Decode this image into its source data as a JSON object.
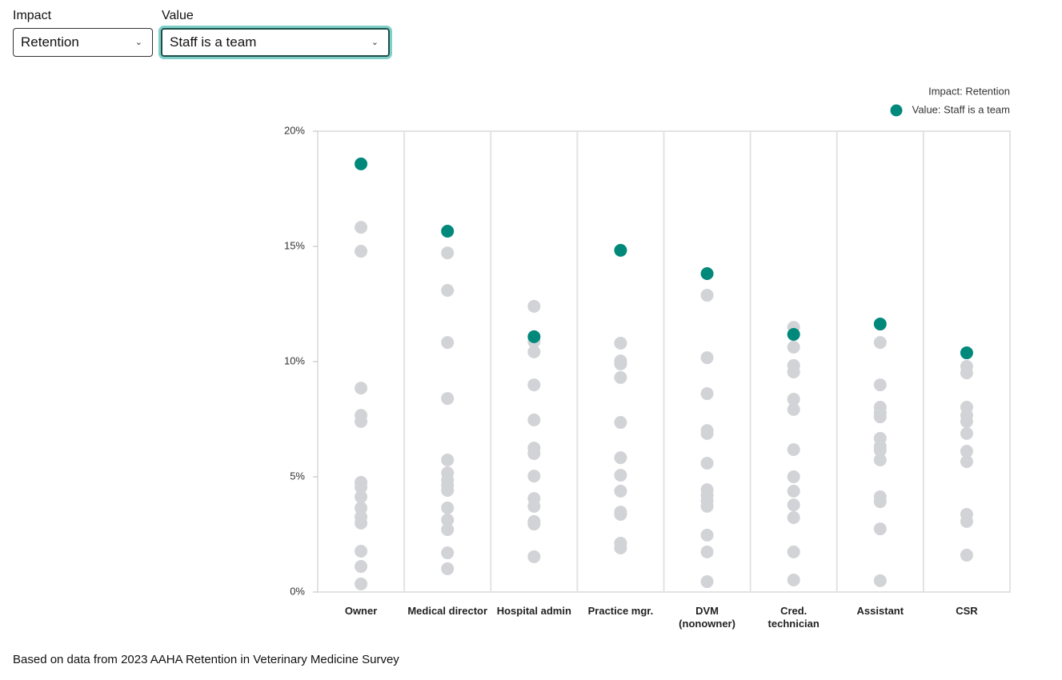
{
  "controls": [
    {
      "label": "Impact",
      "selected": "Retention"
    },
    {
      "label": "Value",
      "selected": "Staff is a team"
    }
  ],
  "chart_data": {
    "type": "strip",
    "legend_title": "Impact: Retention",
    "categories": [
      "Owner",
      "Medical director",
      "Hospital admin",
      "Practice mgr.",
      "DVM (nonowner)",
      "Cred. technician",
      "Assistant",
      "CSR"
    ],
    "series": [
      {
        "name": "Value: Staff is a team",
        "color": "#00897b",
        "values": [
          18.58,
          15.66,
          11.08,
          14.83,
          13.82,
          11.18,
          11.63,
          10.38
        ]
      }
    ],
    "other_values_color": "#d1d3d6",
    "other_values": [
      [
        15.83,
        14.79,
        8.85,
        7.67,
        7.4,
        4.76,
        4.55,
        4.13,
        3.65,
        3.26,
        2.99,
        1.77,
        1.11,
        0.35
      ],
      [
        14.72,
        13.09,
        10.83,
        8.4,
        5.73,
        5.17,
        4.86,
        4.62,
        4.41,
        3.65,
        3.13,
        2.71,
        1.7,
        1.01
      ],
      [
        12.4,
        10.87,
        10.42,
        8.99,
        7.47,
        6.25,
        6.01,
        5.03,
        4.06,
        3.72,
        3.06,
        2.95,
        1.53
      ],
      [
        10.8,
        10.03,
        9.9,
        9.31,
        7.36,
        5.83,
        5.07,
        4.38,
        3.47,
        3.37,
        2.12,
        1.91
      ],
      [
        12.88,
        10.17,
        8.61,
        7.01,
        6.88,
        5.59,
        4.44,
        4.2,
        3.96,
        3.72,
        2.47,
        1.74,
        0.45
      ],
      [
        11.49,
        10.63,
        9.83,
        9.55,
        8.37,
        7.92,
        6.18,
        5.0,
        4.38,
        3.78,
        3.23,
        1.74,
        0.52
      ],
      [
        10.83,
        8.99,
        8.02,
        7.78,
        7.6,
        6.67,
        6.32,
        6.15,
        5.73,
        4.13,
        3.92,
        2.74,
        0.49
      ],
      [
        9.79,
        9.51,
        8.02,
        7.67,
        7.4,
        6.88,
        6.11,
        5.66,
        3.37,
        3.06,
        1.6
      ]
    ],
    "ylim": [
      0,
      20
    ],
    "yticks": [
      {
        "value": 0,
        "label": "0%"
      },
      {
        "value": 5,
        "label": "5%"
      },
      {
        "value": 10,
        "label": "10%"
      },
      {
        "value": 15,
        "label": "15%"
      },
      {
        "value": 20,
        "label": "20%"
      }
    ]
  },
  "source": "Based on data from 2023 AAHA Retention in Veterinary Medicine Survey"
}
